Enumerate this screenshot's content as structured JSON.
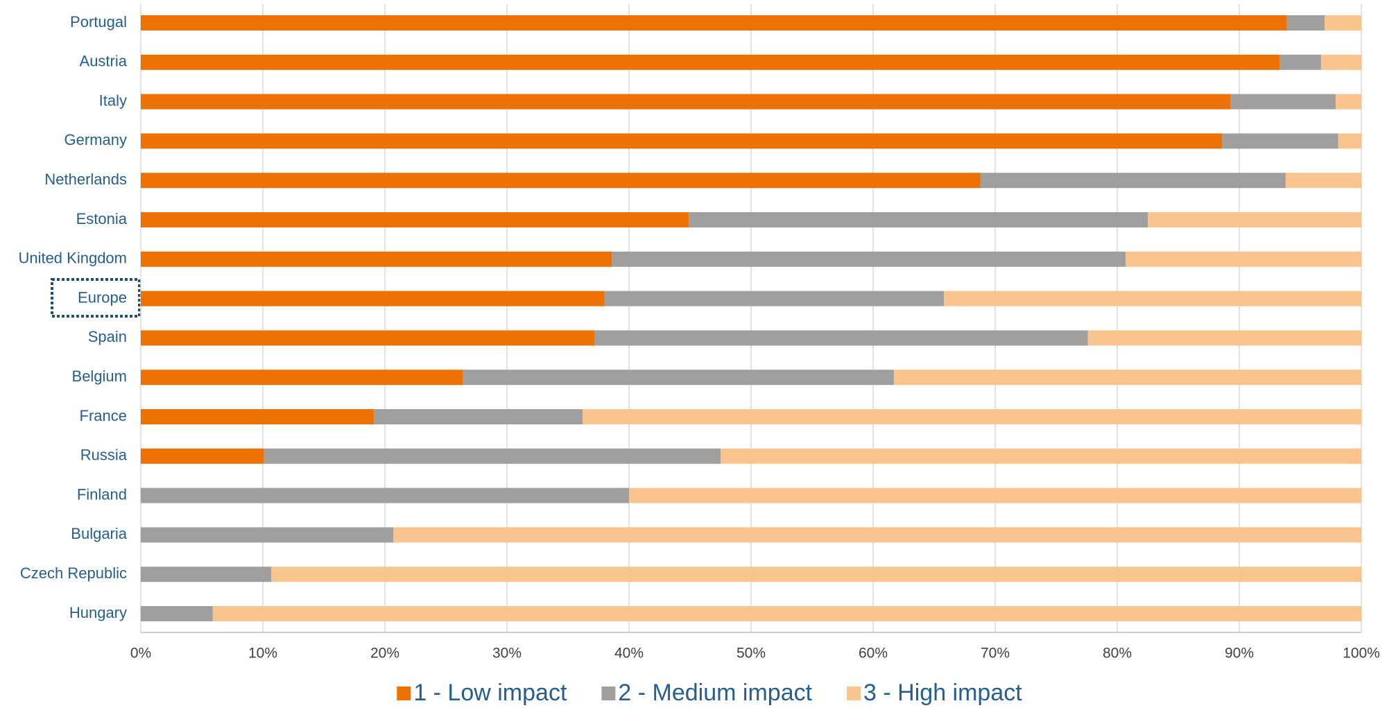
{
  "chart_data": {
    "type": "stacked_barh",
    "categories": [
      "Portugal",
      "Austria",
      "Italy",
      "Germany",
      "Netherlands",
      "Estonia",
      "United Kingdom",
      "Europe",
      "Spain",
      "Belgium",
      "France",
      "Russia",
      "Finland",
      "Bulgaria",
      "Czech Republic",
      "Hungary"
    ],
    "series": [
      {
        "name": "1 - Low impact",
        "color": "#ee7203",
        "values": [
          93.9,
          93.3,
          89.3,
          88.6,
          68.8,
          44.9,
          38.6,
          38.0,
          37.2,
          26.4,
          19.1,
          10.1,
          0,
          0,
          0,
          0
        ]
      },
      {
        "name": "2 - Medium impact",
        "color": "#a09f9d",
        "values": [
          3.1,
          3.4,
          8.6,
          9.5,
          25.0,
          37.6,
          42.1,
          27.8,
          40.4,
          35.3,
          17.1,
          37.4,
          40.0,
          20.7,
          10.7,
          5.9
        ]
      },
      {
        "name": "3 - High impact",
        "color": "#f9c48d",
        "values": [
          3.0,
          3.3,
          2.1,
          1.9,
          6.2,
          17.5,
          19.3,
          34.2,
          22.4,
          38.3,
          63.8,
          52.5,
          60.0,
          79.3,
          89.3,
          94.1
        ]
      }
    ],
    "xlim": [
      0,
      100
    ],
    "xticks": [
      {
        "value": 0,
        "label": "0%"
      },
      {
        "value": 10,
        "label": "10%"
      },
      {
        "value": 20,
        "label": "20%"
      },
      {
        "value": 30,
        "label": "30%"
      },
      {
        "value": 40,
        "label": "40%"
      },
      {
        "value": 50,
        "label": "50%"
      },
      {
        "value": 60,
        "label": "60%"
      },
      {
        "value": 70,
        "label": "70%"
      },
      {
        "value": 80,
        "label": "80%"
      },
      {
        "value": 90,
        "label": "90%"
      },
      {
        "value": 100,
        "label": "100%"
      }
    ],
    "grid": true,
    "legend": "bottom"
  }
}
